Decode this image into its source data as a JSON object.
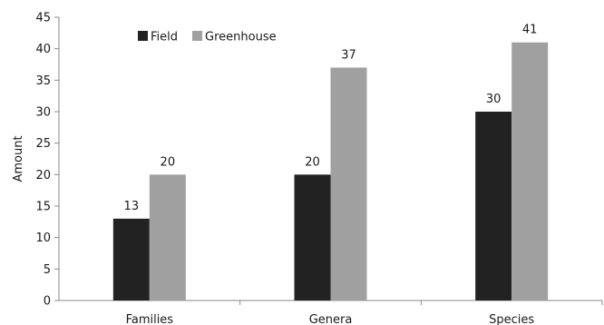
{
  "chart_data": {
    "type": "bar",
    "title": "",
    "xlabel": "",
    "ylabel": "Amount",
    "ylim": [
      0,
      45
    ],
    "yticks": [
      0,
      5,
      10,
      15,
      20,
      25,
      30,
      35,
      40,
      45
    ],
    "categories": [
      "Families",
      "Genera",
      "Species"
    ],
    "series": [
      {
        "name": "Field",
        "values": [
          13,
          20,
          30
        ],
        "color": "#222222"
      },
      {
        "name": "Greenhouse",
        "values": [
          20,
          37,
          41
        ],
        "color": "#a0a0a0"
      }
    ],
    "grid": false,
    "legend_position": "top-left",
    "data_labels": true
  }
}
